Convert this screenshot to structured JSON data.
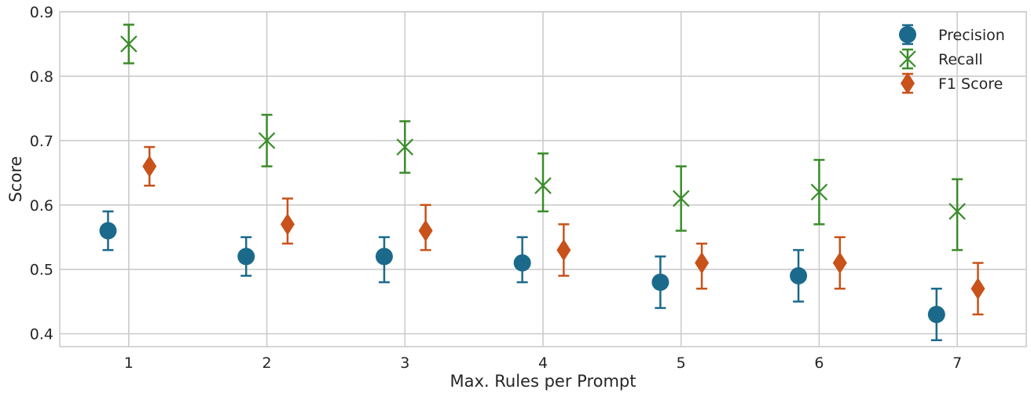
{
  "chart_data": {
    "type": "scatter",
    "xlabel": "Max. Rules per Prompt",
    "ylabel": "Score",
    "x": [
      1,
      2,
      3,
      4,
      5,
      6,
      7
    ],
    "xlim": [
      0.5,
      7.5
    ],
    "ylim": [
      0.38,
      0.9
    ],
    "yticks": [
      0.4,
      0.5,
      0.6,
      0.7,
      0.8,
      0.9
    ],
    "ytick_labels": [
      "0.4",
      "0.5",
      "0.6",
      "0.7",
      "0.8",
      "0.9"
    ],
    "xtick_labels": [
      "1",
      "2",
      "3",
      "4",
      "5",
      "6",
      "7"
    ],
    "grid": true,
    "legend_position": "top-right",
    "series": [
      {
        "name": "Precision",
        "marker": "circle",
        "color": "#1b6a8c",
        "offset": -0.15,
        "values": [
          0.56,
          0.52,
          0.52,
          0.51,
          0.48,
          0.49,
          0.43
        ],
        "lower": [
          0.53,
          0.49,
          0.48,
          0.48,
          0.44,
          0.45,
          0.39
        ],
        "upper": [
          0.59,
          0.55,
          0.55,
          0.55,
          0.52,
          0.53,
          0.47
        ]
      },
      {
        "name": "Recall",
        "marker": "x",
        "color": "#3a8c2a",
        "offset": 0,
        "values": [
          0.85,
          0.7,
          0.69,
          0.63,
          0.61,
          0.62,
          0.59
        ],
        "lower": [
          0.82,
          0.66,
          0.65,
          0.59,
          0.56,
          0.57,
          0.53
        ],
        "upper": [
          0.88,
          0.74,
          0.73,
          0.68,
          0.66,
          0.67,
          0.64
        ]
      },
      {
        "name": "F1 Score",
        "marker": "diamond",
        "color": "#c8521a",
        "offset": 0.15,
        "values": [
          0.66,
          0.57,
          0.56,
          0.53,
          0.51,
          0.51,
          0.47
        ],
        "lower": [
          0.63,
          0.54,
          0.53,
          0.49,
          0.47,
          0.47,
          0.43
        ],
        "upper": [
          0.69,
          0.61,
          0.6,
          0.57,
          0.54,
          0.55,
          0.51
        ]
      }
    ]
  }
}
